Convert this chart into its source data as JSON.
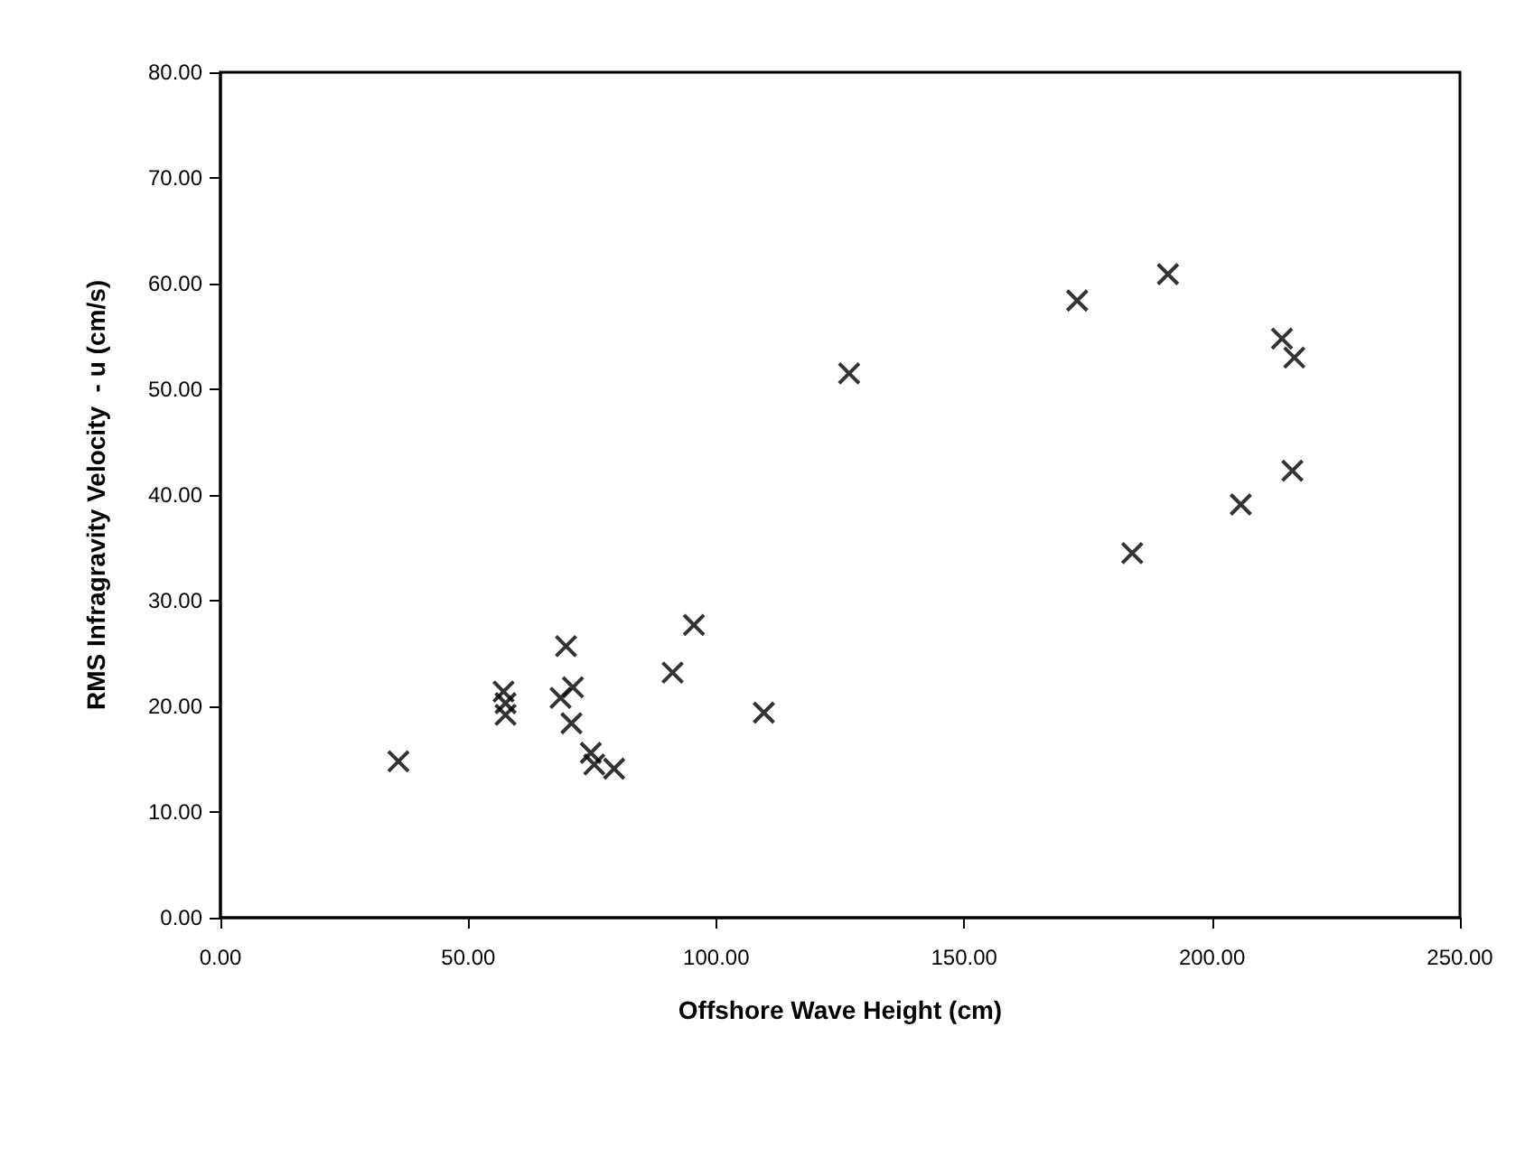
{
  "chart_data": {
    "type": "scatter",
    "xlabel": "Offshore Wave Height (cm)",
    "ylabel": "RMS Infragravity Velocity  - u (cm/s)",
    "x": [
      35.9,
      57.1,
      57.5,
      57.5,
      69.7,
      71.1,
      68.6,
      70.8,
      74.7,
      75.4,
      79.4,
      91.2,
      95.5,
      109.6,
      126.8,
      172.8,
      191.1,
      214.1,
      216.6,
      216.2,
      205.8,
      183.9
    ],
    "values": [
      14.8,
      21.4,
      20.3,
      19.2,
      25.7,
      21.8,
      20.8,
      18.4,
      15.6,
      14.5,
      14.1,
      23.2,
      27.7,
      19.4,
      51.5,
      58.4,
      60.9,
      54.8,
      53.0,
      42.3,
      39.1,
      34.5
    ],
    "color": "#000000",
    "marker": "cross",
    "grid": false,
    "xlim": [
      0,
      250
    ],
    "ylim": [
      0,
      80
    ],
    "xticks": [
      {
        "value": 0,
        "label": "0.00"
      },
      {
        "value": 50,
        "label": "50.00"
      },
      {
        "value": 100,
        "label": "100.00"
      },
      {
        "value": 150,
        "label": "150.00"
      },
      {
        "value": 200,
        "label": "200.00"
      },
      {
        "value": 250,
        "label": "250.00"
      }
    ],
    "yticks": [
      {
        "value": 0,
        "label": "0.00"
      },
      {
        "value": 10,
        "label": "10.00"
      },
      {
        "value": 20,
        "label": "20.00"
      },
      {
        "value": 30,
        "label": "30.00"
      },
      {
        "value": 40,
        "label": "40.00"
      },
      {
        "value": 50,
        "label": "50.00"
      },
      {
        "value": 60,
        "label": "60.00"
      },
      {
        "value": 70,
        "label": "70.00"
      },
      {
        "value": 80,
        "label": "80.00"
      }
    ]
  }
}
